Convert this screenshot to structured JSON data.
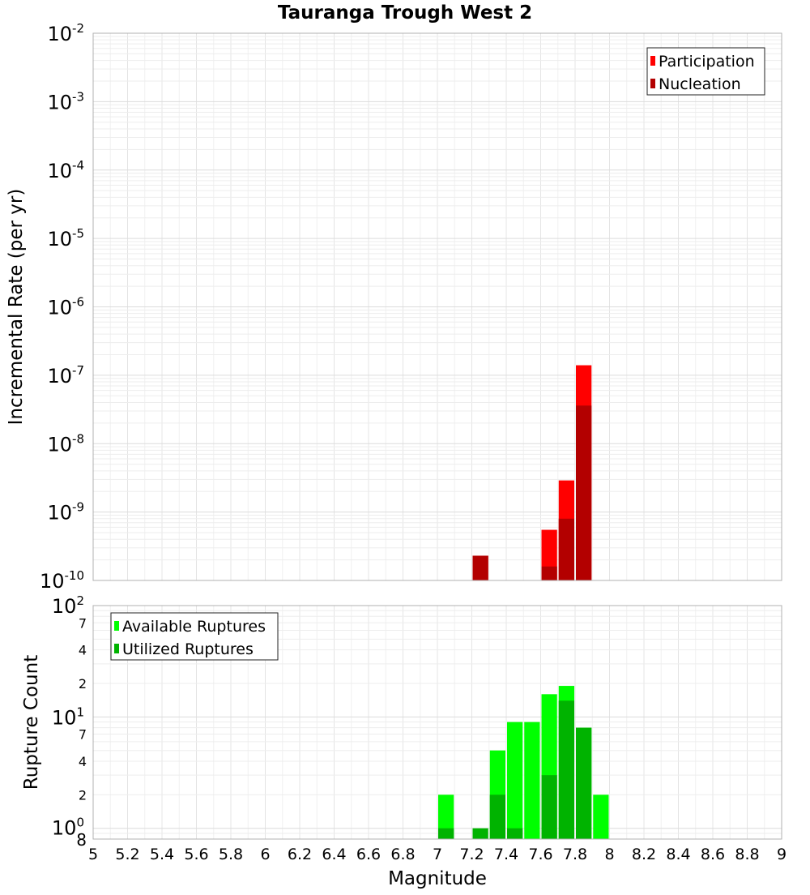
{
  "chart_data": [
    {
      "type": "bar",
      "title": "Tauranga Trough West 2",
      "ylabel": "Incremental Rate (per yr)",
      "xlabel": "",
      "yscale": "log",
      "xlim": [
        5,
        9
      ],
      "ylim": [
        1e-10,
        0.01
      ],
      "bin_width": 0.1,
      "y_tick_labels": [
        {
          "base": "10",
          "exp": "-2"
        },
        {
          "base": "10",
          "exp": "-3"
        },
        {
          "base": "10",
          "exp": "-4"
        },
        {
          "base": "10",
          "exp": "-5"
        },
        {
          "base": "10",
          "exp": "-6"
        },
        {
          "base": "10",
          "exp": "-7"
        },
        {
          "base": "10",
          "exp": "-8"
        },
        {
          "base": "10",
          "exp": "-9"
        },
        {
          "base": "10",
          "exp": "-10"
        }
      ],
      "legend": {
        "position": "top-right",
        "entries": [
          "Participation",
          "Nucleation"
        ]
      },
      "series": [
        {
          "name": "Participation",
          "color": "#ff0000",
          "x": [
            7.25,
            7.65,
            7.75,
            7.85
          ],
          "values": [
            2.3e-10,
            5.5e-10,
            2.9e-09,
            1.4e-07
          ]
        },
        {
          "name": "Nucleation",
          "color": "#b30000",
          "x": [
            7.25,
            7.65,
            7.75,
            7.85
          ],
          "values": [
            2.3e-10,
            1.6e-10,
            8e-10,
            3.6e-08
          ]
        }
      ]
    },
    {
      "type": "bar",
      "title": "",
      "ylabel": "Rupture Count",
      "xlabel": "Magnitude",
      "yscale": "log",
      "xlim": [
        5,
        9
      ],
      "ylim": [
        0.8,
        100
      ],
      "bin_width": 0.1,
      "x_tick_labels": [
        "5",
        "5.2",
        "5.4",
        "5.6",
        "5.8",
        "6",
        "6.2",
        "6.4",
        "6.6",
        "6.8",
        "7",
        "7.2",
        "7.4",
        "7.6",
        "7.8",
        "8",
        "8.2",
        "8.4",
        "8.6",
        "8.8",
        "9"
      ],
      "y_tick_labels": [
        {
          "value": 100,
          "base": "10",
          "exp": "2"
        },
        {
          "value": 70,
          "label": "7"
        },
        {
          "value": 40,
          "label": "4"
        },
        {
          "value": 20,
          "label": "2"
        },
        {
          "value": 10,
          "base": "10",
          "exp": "1"
        },
        {
          "value": 7,
          "label": "7"
        },
        {
          "value": 4,
          "label": "4"
        },
        {
          "value": 2,
          "label": "2"
        },
        {
          "value": 1,
          "base": "10",
          "exp": "0"
        },
        {
          "value": 0.8,
          "label": "8"
        }
      ],
      "legend": {
        "position": "top-left",
        "entries": [
          "Available Ruptures",
          "Utilized Ruptures"
        ]
      },
      "series": [
        {
          "name": "Available Ruptures",
          "color": "#00ff00",
          "x": [
            7.05,
            7.35,
            7.45,
            7.55,
            7.65,
            7.75,
            7.85,
            7.95
          ],
          "values": [
            2,
            5,
            9,
            9,
            16,
            19,
            8,
            2
          ]
        },
        {
          "name": "Utilized Ruptures",
          "color": "#00b300",
          "x": [
            7.05,
            7.25,
            7.35,
            7.45,
            7.65,
            7.75,
            7.85
          ],
          "values": [
            1,
            1,
            2,
            1,
            3,
            14,
            8
          ]
        }
      ]
    }
  ]
}
